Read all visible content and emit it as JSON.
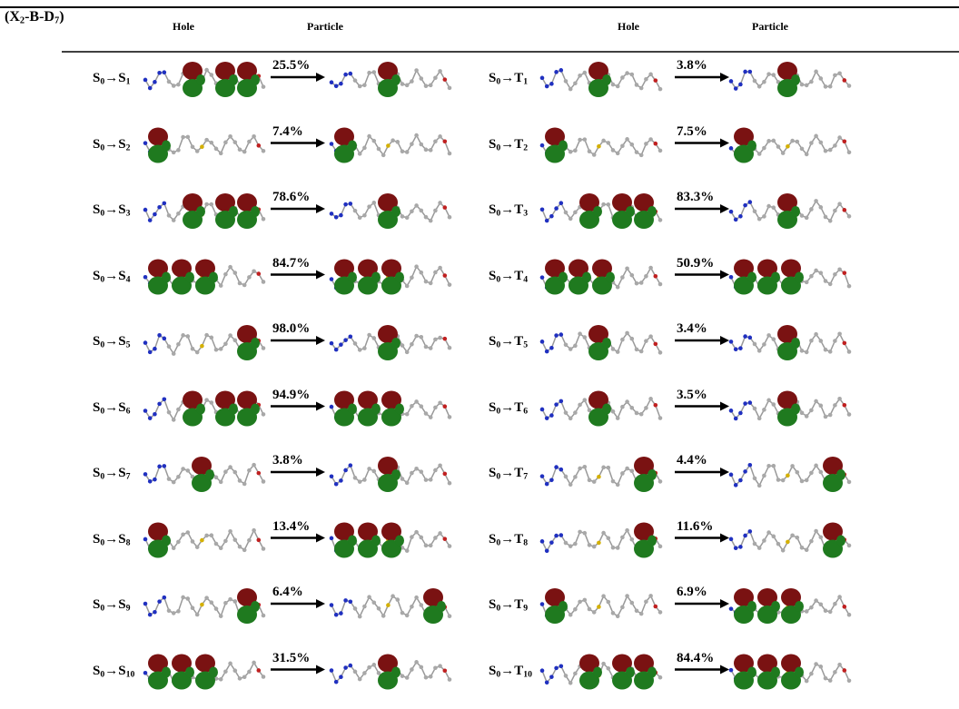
{
  "header": {
    "title": [
      "(X",
      "2",
      "-B-D",
      "7",
      ")"
    ],
    "columns": [
      "Hole",
      "Particle",
      "Hole",
      "Particle"
    ]
  },
  "rows": [
    {
      "singlet": {
        "label": [
          "S",
          "0",
          "→S",
          "1"
        ],
        "percent": "25.5%"
      },
      "triplet": {
        "label": [
          "S",
          "0",
          "→T",
          "1"
        ],
        "percent": "3.8%"
      }
    },
    {
      "singlet": {
        "label": [
          "S",
          "0",
          "→S",
          "2"
        ],
        "percent": "7.4%"
      },
      "triplet": {
        "label": [
          "S",
          "0",
          "→T",
          "2"
        ],
        "percent": "7.5%"
      }
    },
    {
      "singlet": {
        "label": [
          "S",
          "0",
          "→S",
          "3"
        ],
        "percent": "78.6%"
      },
      "triplet": {
        "label": [
          "S",
          "0",
          "→T",
          "3"
        ],
        "percent": "83.3%"
      }
    },
    {
      "singlet": {
        "label": [
          "S",
          "0",
          "→S",
          "4"
        ],
        "percent": "84.7%"
      },
      "triplet": {
        "label": [
          "S",
          "0",
          "→T",
          "4"
        ],
        "percent": "50.9%"
      }
    },
    {
      "singlet": {
        "label": [
          "S",
          "0",
          "→S",
          "5"
        ],
        "percent": "98.0%"
      },
      "triplet": {
        "label": [
          "S",
          "0",
          "→T",
          "5"
        ],
        "percent": "3.4%"
      }
    },
    {
      "singlet": {
        "label": [
          "S",
          "0",
          "→S",
          "6"
        ],
        "percent": "94.9%"
      },
      "triplet": {
        "label": [
          "S",
          "0",
          "→T",
          "6"
        ],
        "percent": "3.5%"
      }
    },
    {
      "singlet": {
        "label": [
          "S",
          "0",
          "→S",
          "7"
        ],
        "percent": "3.8%"
      },
      "triplet": {
        "label": [
          "S",
          "0",
          "→T",
          "7"
        ],
        "percent": "4.4%"
      }
    },
    {
      "singlet": {
        "label": [
          "S",
          "0",
          "→S",
          "8"
        ],
        "percent": "13.4%"
      },
      "triplet": {
        "label": [
          "S",
          "0",
          "→T",
          "8"
        ],
        "percent": "11.6%"
      }
    },
    {
      "singlet": {
        "label": [
          "S",
          "0",
          "→S",
          "9"
        ],
        "percent": "6.4%"
      },
      "triplet": {
        "label": [
          "S",
          "0",
          "→T",
          "9"
        ],
        "percent": "6.9%"
      }
    },
    {
      "singlet": {
        "label": [
          "S",
          "0",
          "→S",
          "10"
        ],
        "percent": "31.5%"
      },
      "triplet": {
        "label": [
          "S",
          "0",
          "→T",
          "10"
        ],
        "percent": "84.4%"
      }
    }
  ]
}
